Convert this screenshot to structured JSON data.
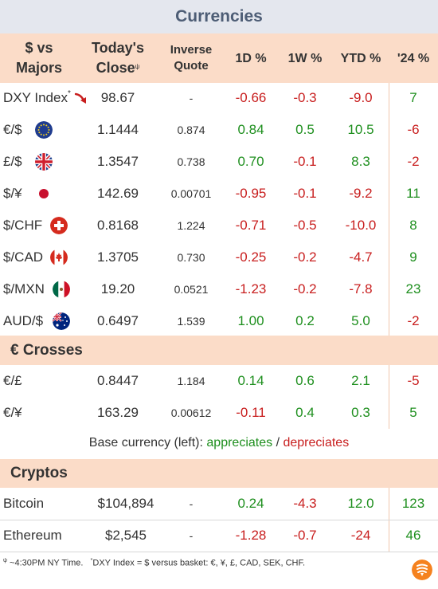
{
  "title": "Currencies",
  "headers": {
    "pair_line1": "$ vs",
    "pair_line2": "Majors",
    "close_line1": "Today's",
    "close_line2": "Close",
    "close_mark": "ψ",
    "inverse_line1": "Inverse",
    "inverse_line2": "Quote",
    "d1": "1D %",
    "w1": "1W %",
    "ytd": "YTD %",
    "y24": "'24 %"
  },
  "majors": [
    {
      "label": "DXY Index",
      "mark": "*",
      "icon": "down-arrow-icon",
      "close": "98.67",
      "inverse": "-",
      "d1": "-0.66",
      "w1": "-0.3",
      "ytd": "-9.0",
      "y24": "7"
    },
    {
      "label": "€/$",
      "icon": "eu-flag-icon",
      "close": "1.1444",
      "inverse": "0.874",
      "d1": "0.84",
      "w1": "0.5",
      "ytd": "10.5",
      "y24": "-6"
    },
    {
      "label": "£/$",
      "icon": "uk-flag-icon",
      "close": "1.3547",
      "inverse": "0.738",
      "d1": "0.70",
      "w1": "-0.1",
      "ytd": "8.3",
      "y24": "-2"
    },
    {
      "label": "$/¥",
      "icon": "japan-flag-icon",
      "close": "142.69",
      "inverse": "0.00701",
      "d1": "-0.95",
      "w1": "-0.1",
      "ytd": "-9.2",
      "y24": "11"
    },
    {
      "label": "$/CHF",
      "icon": "swiss-flag-icon",
      "close": "0.8168",
      "inverse": "1.224",
      "d1": "-0.71",
      "w1": "-0.5",
      "ytd": "-10.0",
      "y24": "8"
    },
    {
      "label": "$/CAD",
      "icon": "canada-flag-icon",
      "close": "1.3705",
      "inverse": "0.730",
      "d1": "-0.25",
      "w1": "-0.2",
      "ytd": "-4.7",
      "y24": "9"
    },
    {
      "label": "$/MXN",
      "icon": "mexico-flag-icon",
      "close": "19.20",
      "inverse": "0.0521",
      "d1": "-1.23",
      "w1": "-0.2",
      "ytd": "-7.8",
      "y24": "23"
    },
    {
      "label": "AUD/$",
      "icon": "australia-flag-icon",
      "close": "0.6497",
      "inverse": "1.539",
      "d1": "1.00",
      "w1": "0.2",
      "ytd": "5.0",
      "y24": "-2"
    }
  ],
  "crosses_title": "€ Crosses",
  "crosses": [
    {
      "label": "€/£",
      "close": "0.8447",
      "inverse": "1.184",
      "d1": "0.14",
      "w1": "0.6",
      "ytd": "2.1",
      "y24": "-5"
    },
    {
      "label": "€/¥",
      "close": "163.29",
      "inverse": "0.00612",
      "d1": "-0.11",
      "w1": "0.4",
      "ytd": "0.3",
      "y24": "5"
    }
  ],
  "base_note": {
    "prefix": "Base currency (left): ",
    "appreciates": "appreciates",
    "sep": " / ",
    "depreciates": "depreciates"
  },
  "cryptos_title": "Cryptos",
  "cryptos": [
    {
      "label": "Bitcoin",
      "close": "$104,894",
      "inverse": "-",
      "d1": "0.24",
      "w1": "-4.3",
      "ytd": "12.0",
      "y24": "123"
    },
    {
      "label": "Ethereum",
      "close": "$2,545",
      "inverse": "-",
      "d1": "-1.28",
      "w1": "-0.7",
      "ytd": "-24",
      "y24": "46"
    }
  ],
  "footnote": {
    "psi_mark": "ψ",
    "psi_text": " ~4:30PM NY Time.",
    "star_mark": "*",
    "star_text": "DXY Index = $ versus basket: €, ¥, £, CAD, SEK, CHF."
  },
  "colors": {
    "positive": "#1e8f1e",
    "negative": "#c81e1e",
    "header_bg": "#fbdcc8",
    "title_bg": "#e4e7ee",
    "logo": "#f5821f"
  }
}
